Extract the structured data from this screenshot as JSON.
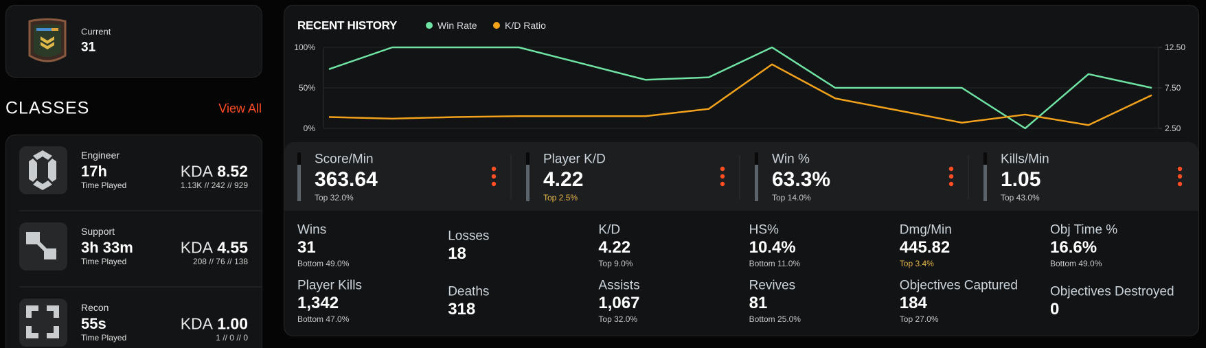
{
  "rank": {
    "label": "Current",
    "value": "31"
  },
  "classes": {
    "title": "CLASSES",
    "view_all": "View All",
    "items": [
      {
        "name": "Engineer",
        "time": "17h",
        "time_label": "Time Played",
        "kda_label": "KDA",
        "kda": "8.52",
        "detail": "1.13K // 242 // 929"
      },
      {
        "name": "Support",
        "time": "3h 33m",
        "time_label": "Time Played",
        "kda_label": "KDA",
        "kda": "4.55",
        "detail": "208 // 76 // 138"
      },
      {
        "name": "Recon",
        "time": "55s",
        "time_label": "Time Played",
        "kda_label": "KDA",
        "kda": "1.00",
        "detail": "1 // 0 // 0"
      }
    ]
  },
  "chart_data": {
    "type": "line",
    "title": "RECENT HISTORY",
    "categories": [
      null,
      null,
      null,
      null,
      null,
      null,
      null,
      null,
      null,
      null,
      null,
      null,
      null,
      null
    ],
    "series": [
      {
        "name": "Win Rate",
        "color": "#6fe3a4",
        "values": [
          73,
          100,
          100,
          100,
          80,
          60,
          63,
          100,
          50,
          50,
          50,
          0,
          67,
          50
        ]
      },
      {
        "name": "K/D Ratio",
        "color": "#f3a21c",
        "axis": "y2",
        "values": [
          3.9,
          3.7,
          3.9,
          4.0,
          4.0,
          4.0,
          4.9,
          10.4,
          6.2,
          4.7,
          3.2,
          4.2,
          2.9,
          6.6
        ]
      }
    ],
    "ylim": [
      0,
      100
    ],
    "yticks": [
      {
        "value": 0,
        "label": "0%"
      },
      {
        "value": 50,
        "label": "50%"
      },
      {
        "value": 100,
        "label": "100%"
      }
    ],
    "y2lim": [
      2.5,
      12.5
    ],
    "y2ticks": [
      {
        "value": 2.5,
        "label": "2.50"
      },
      {
        "value": 7.5,
        "label": "7.50"
      },
      {
        "value": 12.5,
        "label": "12.50"
      }
    ],
    "grid": true,
    "legend": "top"
  },
  "highlights": [
    {
      "label": "Score/Min",
      "value": "363.64",
      "sub": "Top 32.0%"
    },
    {
      "label": "Player K/D",
      "value": "4.22",
      "sub": "Top 2.5%",
      "sub_color": "#e8b84a"
    },
    {
      "label": "Win %",
      "value": "63.3%",
      "sub": "Top 14.0%"
    },
    {
      "label": "Kills/Min",
      "value": "1.05",
      "sub": "Top 43.0%"
    }
  ],
  "stats": [
    {
      "label": "Wins",
      "value": "31",
      "sub": "Bottom 49.0%"
    },
    {
      "label": "Losses",
      "value": "18"
    },
    {
      "label": "K/D",
      "value": "4.22",
      "sub": "Top 9.0%"
    },
    {
      "label": "HS%",
      "value": "10.4%",
      "sub": "Bottom 11.0%"
    },
    {
      "label": "Dmg/Min",
      "value": "445.82",
      "sub": "Top 3.4%",
      "sub_color": "#e8b84a"
    },
    {
      "label": "Obj Time %",
      "value": "16.6%",
      "sub": "Bottom 49.0%"
    },
    {
      "label": "Player Kills",
      "value": "1,342",
      "sub": "Bottom 47.0%"
    },
    {
      "label": "Deaths",
      "value": "318"
    },
    {
      "label": "Assists",
      "value": "1,067",
      "sub": "Top 32.0%"
    },
    {
      "label": "Revives",
      "value": "81",
      "sub": "Bottom 25.0%"
    },
    {
      "label": "Objectives Captured",
      "value": "184",
      "sub": "Top 27.0%"
    },
    {
      "label": "Objectives Destroyed",
      "value": "0"
    }
  ]
}
